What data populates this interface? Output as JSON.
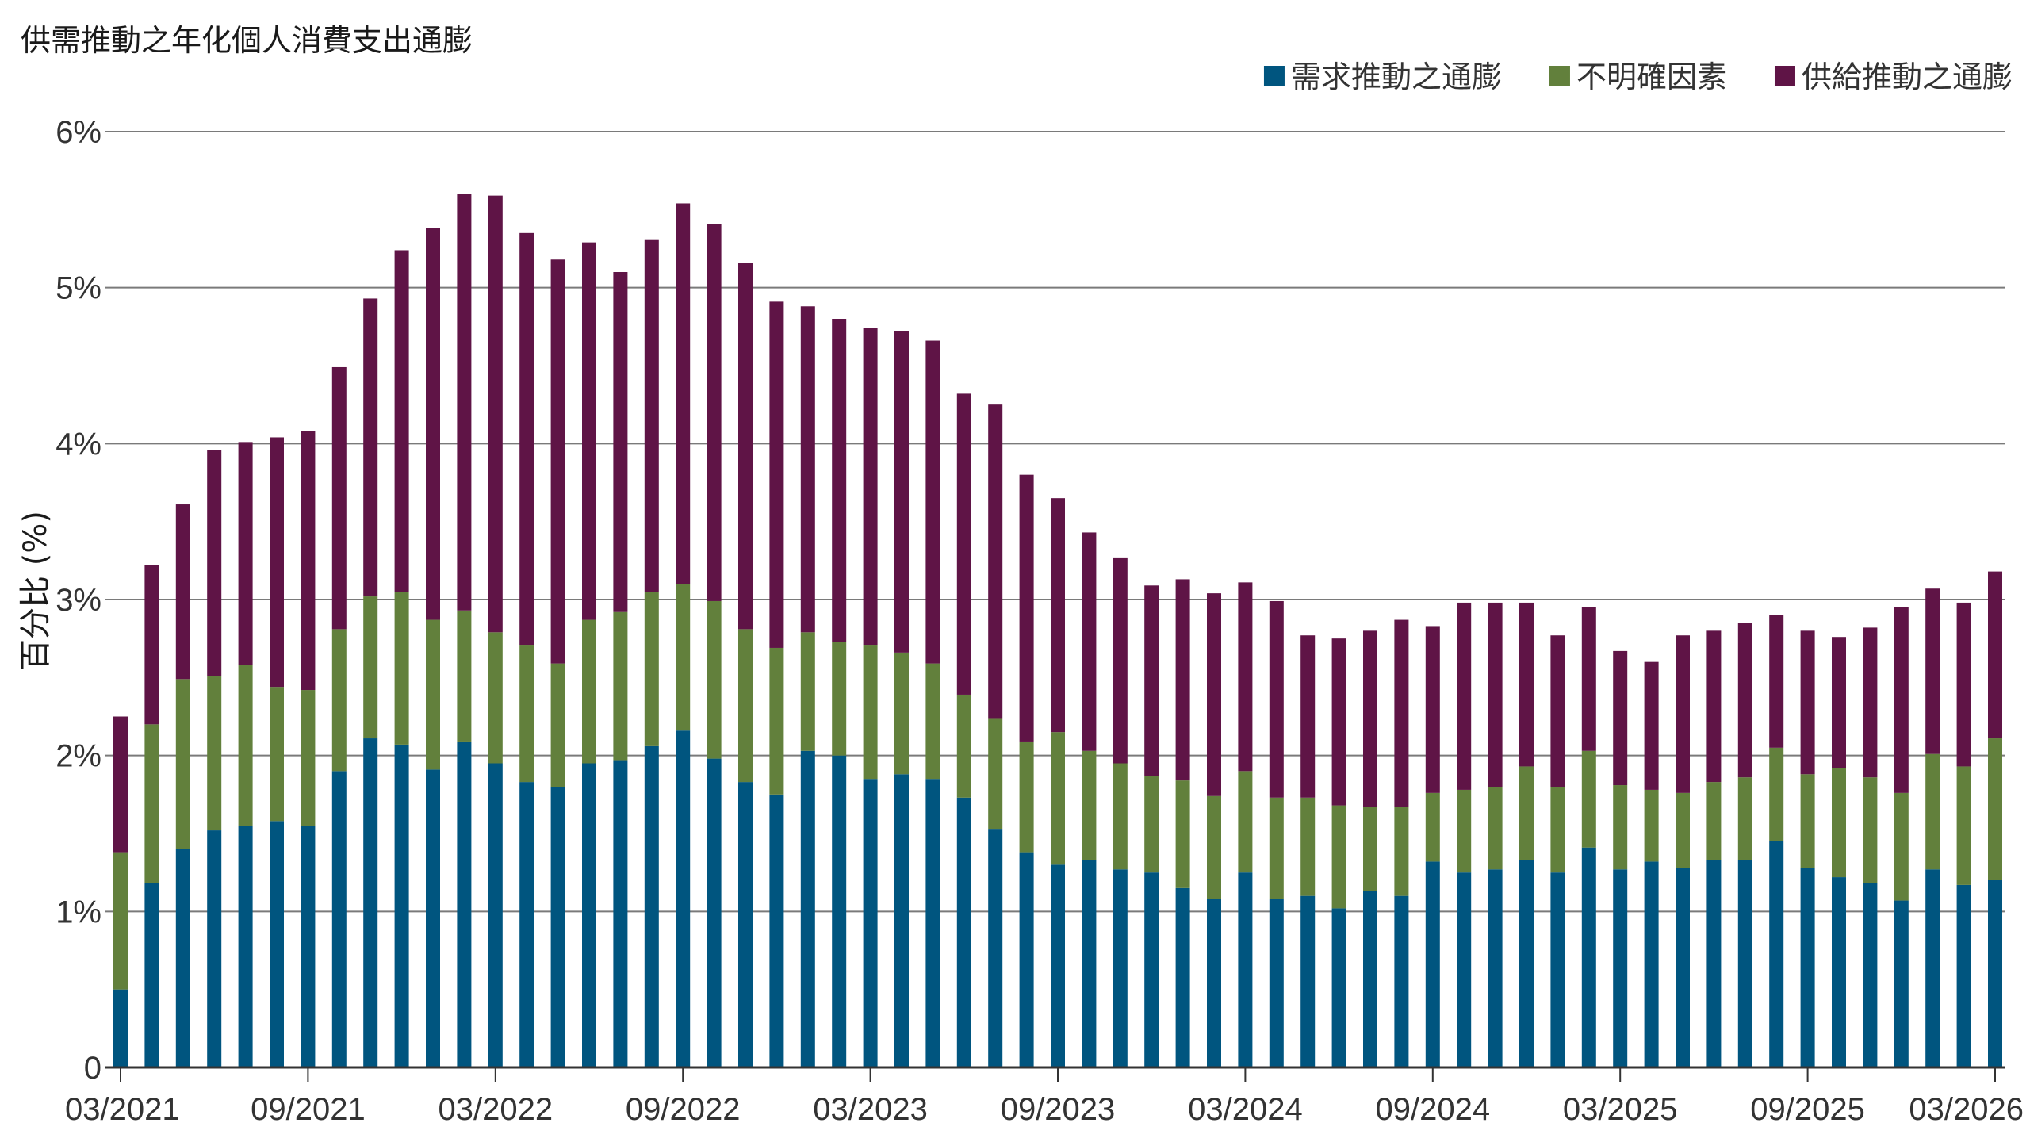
{
  "chart_data": {
    "type": "bar",
    "stacked": true,
    "title": "供需推動之年化個人消費支出通膨",
    "ylabel": "百分比 (%)",
    "xlabel": "",
    "ylim": [
      0,
      6
    ],
    "yticks": [
      "0",
      "1%",
      "2%",
      "3%",
      "4%",
      "5%",
      "6%"
    ],
    "grid": true,
    "legend_position": "top-right",
    "x_tick_labels": [
      "03/2021",
      "09/2021",
      "03/2022",
      "09/2022",
      "03/2023",
      "09/2023",
      "03/2024",
      "09/2024",
      "03/2025",
      "09/2025",
      "03/2026"
    ],
    "categories": [
      "03/2021",
      "04/2021",
      "05/2021",
      "06/2021",
      "07/2021",
      "08/2021",
      "09/2021",
      "10/2021",
      "11/2021",
      "12/2021",
      "01/2022",
      "02/2022",
      "03/2022",
      "04/2022",
      "05/2022",
      "06/2022",
      "07/2022",
      "08/2022",
      "09/2022",
      "10/2022",
      "11/2022",
      "12/2022",
      "01/2023",
      "02/2023",
      "03/2023",
      "04/2023",
      "05/2023",
      "06/2023",
      "07/2023",
      "08/2023",
      "09/2023",
      "10/2023",
      "11/2023",
      "12/2023",
      "01/2024",
      "02/2024",
      "03/2024",
      "04/2024",
      "05/2024",
      "06/2024",
      "07/2024",
      "08/2024",
      "09/2024",
      "10/2024",
      "11/2024",
      "12/2024",
      "01/2025",
      "02/2025",
      "03/2025",
      "04/2025",
      "05/2025",
      "06/2025",
      "07/2025",
      "08/2025",
      "09/2025",
      "10/2025",
      "11/2025",
      "12/2025",
      "01/2026",
      "02/2026",
      "03/2026"
    ],
    "series": [
      {
        "name": "需求推動之通膨",
        "color": "#00557f",
        "values": [
          0.5,
          1.18,
          1.4,
          1.52,
          1.55,
          1.58,
          1.55,
          1.9,
          2.11,
          2.07,
          1.91,
          2.09,
          1.95,
          1.83,
          1.8,
          1.95,
          1.97,
          2.06,
          2.16,
          1.98,
          1.83,
          1.75,
          2.03,
          2.0,
          1.85,
          1.88,
          1.85,
          1.73,
          1.53,
          1.38,
          1.3,
          1.33,
          1.27,
          1.25,
          1.15,
          1.08,
          1.25,
          1.08,
          1.1,
          1.02,
          1.13,
          1.1,
          1.32,
          1.25,
          1.27,
          1.33,
          1.25,
          1.41,
          1.27,
          1.32,
          1.28,
          1.33,
          1.33,
          1.45,
          1.28,
          1.22,
          1.18,
          1.07,
          1.27,
          1.17,
          1.2
        ]
      },
      {
        "name": "不明確因素",
        "color": "#62803c",
        "values": [
          0.88,
          1.02,
          1.09,
          0.99,
          1.03,
          0.86,
          0.87,
          0.91,
          0.91,
          0.98,
          0.96,
          0.84,
          0.84,
          0.88,
          0.79,
          0.92,
          0.95,
          0.99,
          0.94,
          1.01,
          0.98,
          0.94,
          0.76,
          0.73,
          0.86,
          0.78,
          0.74,
          0.66,
          0.71,
          0.71,
          0.85,
          0.7,
          0.68,
          0.62,
          0.69,
          0.66,
          0.65,
          0.65,
          0.63,
          0.66,
          0.54,
          0.57,
          0.44,
          0.53,
          0.53,
          0.6,
          0.55,
          0.62,
          0.54,
          0.46,
          0.48,
          0.5,
          0.53,
          0.6,
          0.6,
          0.7,
          0.68,
          0.69,
          0.74,
          0.76,
          0.91
        ]
      },
      {
        "name": "供給推動之通膨",
        "color": "#5f1446",
        "values": [
          0.87,
          1.02,
          1.12,
          1.45,
          1.43,
          1.6,
          1.66,
          1.68,
          1.91,
          2.19,
          2.51,
          2.67,
          2.8,
          2.64,
          2.59,
          2.42,
          2.18,
          2.26,
          2.44,
          2.42,
          2.35,
          2.22,
          2.09,
          2.07,
          2.03,
          2.06,
          2.07,
          1.93,
          2.01,
          1.71,
          1.5,
          1.4,
          1.32,
          1.22,
          1.29,
          1.3,
          1.21,
          1.26,
          1.04,
          1.07,
          1.13,
          1.2,
          1.07,
          1.2,
          1.18,
          1.05,
          0.97,
          0.92,
          0.86,
          0.82,
          1.01,
          0.97,
          0.99,
          0.85,
          0.92,
          0.84,
          0.96,
          1.19,
          1.06,
          1.05,
          1.07
        ]
      }
    ]
  }
}
